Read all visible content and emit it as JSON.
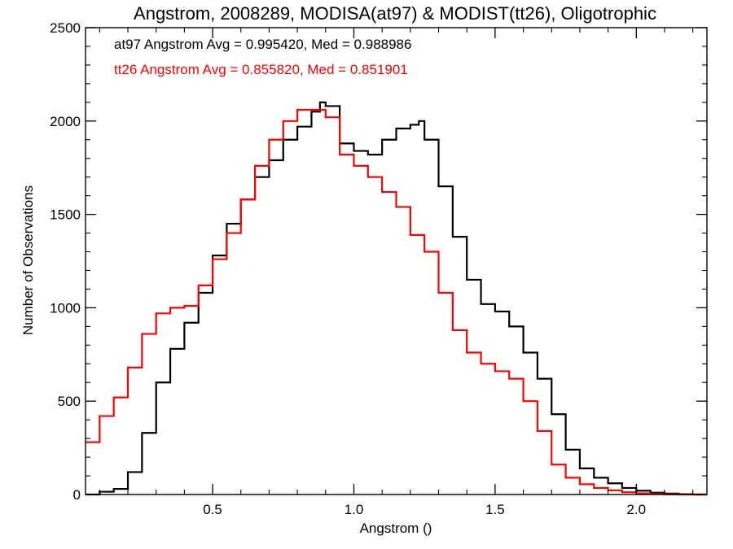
{
  "chart_data": {
    "type": "line",
    "title": "Angstrom, 2008289, MODISA(at97) & MODIST(tt26), Oligotrophic",
    "xlabel": "Angstrom ()",
    "ylabel": "Number of Observations",
    "xlim": [
      0.05,
      2.25
    ],
    "ylim": [
      0,
      2500
    ],
    "xticks": [
      0.5,
      1.0,
      1.5,
      2.0
    ],
    "xtick_labels": [
      "0.5",
      "1.0",
      "1.5",
      "2.0"
    ],
    "yticks": [
      0,
      500,
      1000,
      1500,
      2000,
      2500
    ],
    "ytick_labels": [
      "0",
      "500",
      "1000",
      "1500",
      "2000",
      "2500"
    ],
    "grid": false,
    "step_histogram": true,
    "annotations": [
      {
        "text": "at97 Angstrom Avg = 0.995420, Med = 0.988986",
        "color": "#000000"
      },
      {
        "text": "tt26 Angstrom Avg = 0.855820, Med = 0.851901",
        "color": "#ff0000"
      }
    ],
    "series": [
      {
        "name": "at97",
        "color": "#000000",
        "x": [
          0.05,
          0.1,
          0.15,
          0.2,
          0.25,
          0.3,
          0.35,
          0.4,
          0.45,
          0.5,
          0.55,
          0.6,
          0.65,
          0.7,
          0.75,
          0.8,
          0.85,
          0.88,
          0.9,
          0.95,
          1.0,
          1.05,
          1.1,
          1.15,
          1.2,
          1.23,
          1.25,
          1.3,
          1.35,
          1.4,
          1.45,
          1.5,
          1.55,
          1.6,
          1.65,
          1.7,
          1.75,
          1.8,
          1.85,
          1.9,
          1.95,
          2.0,
          2.05,
          2.1,
          2.15,
          2.2,
          2.25
        ],
        "y": [
          0,
          15,
          30,
          120,
          330,
          600,
          780,
          920,
          1080,
          1280,
          1450,
          1580,
          1700,
          1790,
          1900,
          1970,
          2050,
          2100,
          2080,
          1880,
          1840,
          1820,
          1900,
          1960,
          1980,
          2000,
          1900,
          1650,
          1380,
          1150,
          1020,
          980,
          900,
          760,
          620,
          430,
          240,
          140,
          90,
          60,
          35,
          20,
          10,
          5,
          2,
          0,
          0
        ]
      },
      {
        "name": "tt26",
        "color": "#ff0000",
        "x": [
          0.05,
          0.1,
          0.15,
          0.2,
          0.25,
          0.3,
          0.35,
          0.4,
          0.45,
          0.5,
          0.55,
          0.6,
          0.65,
          0.7,
          0.75,
          0.8,
          0.85,
          0.9,
          0.95,
          1.0,
          1.05,
          1.1,
          1.15,
          1.2,
          1.25,
          1.3,
          1.35,
          1.4,
          1.45,
          1.5,
          1.55,
          1.6,
          1.65,
          1.7,
          1.75,
          1.8,
          1.85,
          1.9,
          1.95,
          2.0,
          2.05,
          2.1,
          2.15,
          2.2,
          2.25
        ],
        "y": [
          280,
          420,
          520,
          680,
          860,
          970,
          1000,
          1010,
          1120,
          1260,
          1400,
          1580,
          1760,
          1900,
          2000,
          2060,
          2060,
          2020,
          1820,
          1760,
          1700,
          1620,
          1540,
          1390,
          1300,
          1080,
          880,
          760,
          700,
          660,
          620,
          500,
          340,
          160,
          90,
          55,
          35,
          22,
          12,
          6,
          3,
          1,
          0,
          0,
          0
        ]
      }
    ]
  }
}
